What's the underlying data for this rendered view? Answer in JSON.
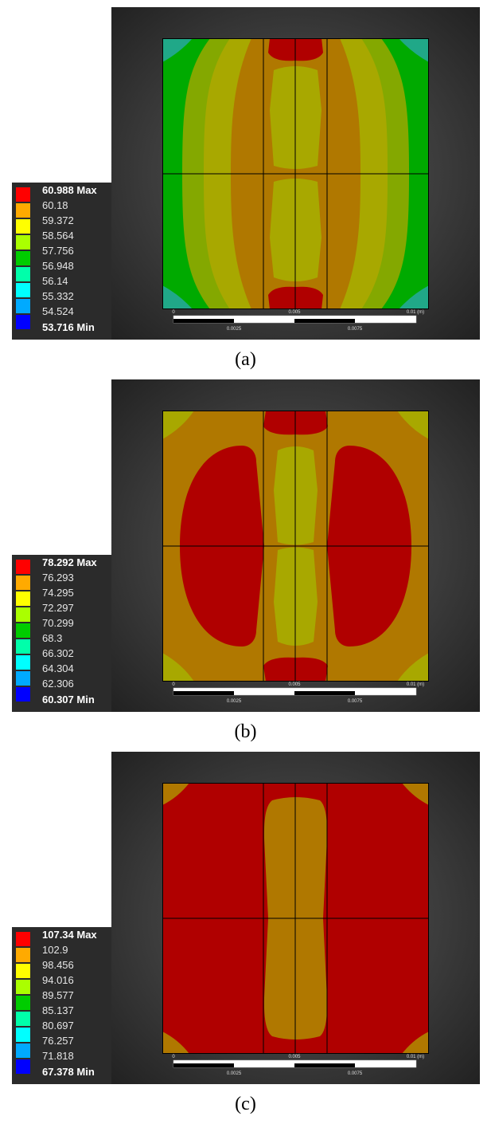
{
  "panels": [
    {
      "caption": "(a)",
      "legend": {
        "max_label": "60.988 Max",
        "min_label": "53.716 Min",
        "intermediate": [
          "60.18",
          "59.372",
          "58.564",
          "57.756",
          "56.948",
          "56.14",
          "55.332",
          "54.524"
        ]
      },
      "scale": {
        "ticks_top": [
          "0",
          "0.005",
          "0.01 (m)"
        ],
        "ticks_bottom": [
          "0.0025",
          "0.0075"
        ]
      }
    },
    {
      "caption": "(b)",
      "legend": {
        "max_label": "78.292 Max",
        "min_label": "60.307 Min",
        "intermediate": [
          "76.293",
          "74.295",
          "72.297",
          "70.299",
          "68.3",
          "66.302",
          "64.304",
          "62.306"
        ]
      },
      "scale": {
        "ticks_top": [
          "0",
          "0.005",
          "0.01 (m)"
        ],
        "ticks_bottom": [
          "0.0025",
          "0.0075"
        ]
      }
    },
    {
      "caption": "(c)",
      "legend": {
        "max_label": "107.34 Max",
        "min_label": "67.378 Min",
        "intermediate": [
          "102.9",
          "98.456",
          "94.016",
          "89.577",
          "85.137",
          "80.697",
          "76.257",
          "71.818"
        ]
      },
      "scale": {
        "ticks_top": [
          "0",
          "0.005",
          "0.01 (m)"
        ],
        "ticks_bottom": [
          "0.0025",
          "0.0075"
        ]
      }
    }
  ],
  "legend_colors": [
    "#ff0000",
    "#ffaa00",
    "#ffff00",
    "#aaff00",
    "#00cc00",
    "#00ffaa",
    "#00ffff",
    "#00aaff",
    "#0000ff"
  ],
  "contour_colors": {
    "red": "#b00000",
    "orange": "#b07800",
    "yellow": "#a8a800",
    "yellow_green": "#84a800",
    "green": "#00aa00",
    "teal": "#20a888"
  }
}
